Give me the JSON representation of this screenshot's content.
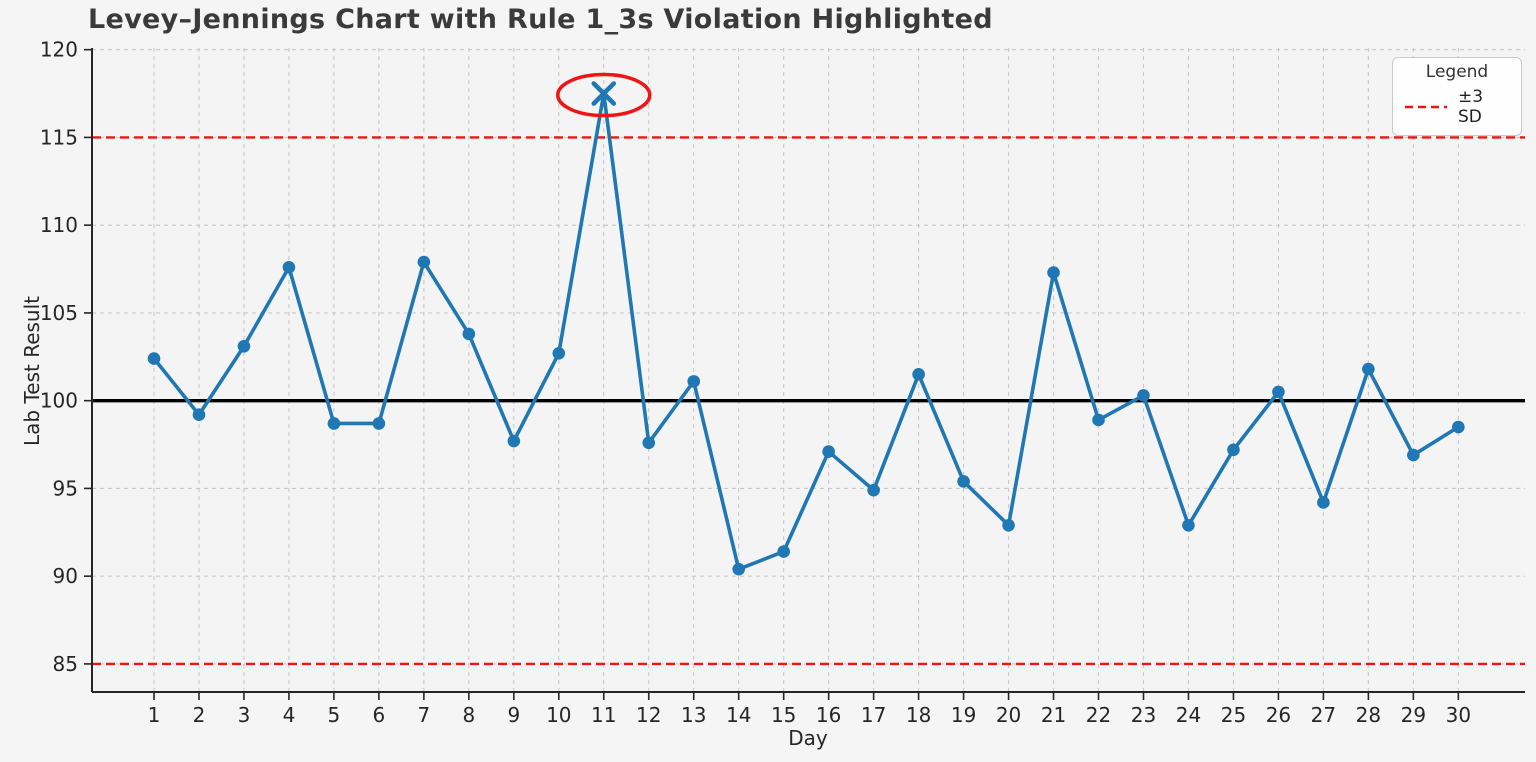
{
  "chart_data": {
    "type": "line",
    "title": "Levey–Jennings Chart with Rule 1_3s Violation Highlighted",
    "xlabel": "Day",
    "ylabel": "Lab Test Result",
    "x": [
      1,
      2,
      3,
      4,
      5,
      6,
      7,
      8,
      9,
      10,
      11,
      12,
      13,
      14,
      15,
      16,
      17,
      18,
      19,
      20,
      21,
      22,
      23,
      24,
      25,
      26,
      27,
      28,
      29,
      30
    ],
    "values": [
      102.4,
      99.2,
      103.1,
      107.6,
      98.7,
      98.7,
      107.9,
      103.8,
      97.7,
      102.7,
      117.5,
      97.6,
      101.1,
      90.4,
      91.4,
      97.1,
      94.9,
      101.5,
      95.4,
      92.9,
      107.3,
      98.9,
      100.3,
      92.9,
      97.2,
      100.5,
      94.2,
      101.8,
      96.9,
      98.5
    ],
    "mean": 100,
    "sd": 5,
    "upper_3sd": 115,
    "lower_3sd": 85,
    "yticks": [
      85,
      90,
      95,
      100,
      105,
      110,
      115,
      120
    ],
    "ylim": [
      83.4,
      120.1
    ],
    "grid": "dashed, both axes",
    "violation": {
      "day": 11,
      "value": 117.5,
      "rule": "1_3s",
      "marker": "x",
      "highlight": "red-ellipse"
    },
    "legend": {
      "title": "Legend",
      "position": "upper right",
      "entries": [
        {
          "label": "±3 SD",
          "line_style": "dashed",
          "color": "#f01414"
        }
      ]
    },
    "colors": {
      "series": "#1f77b4",
      "mean_line": "#000000",
      "sd_line": "#f01414",
      "violation_ellipse": "#f01414",
      "grid": "#c9c9c9",
      "spine": "#262626",
      "tick_text": "#262626",
      "background": "#f4f4f5"
    }
  }
}
